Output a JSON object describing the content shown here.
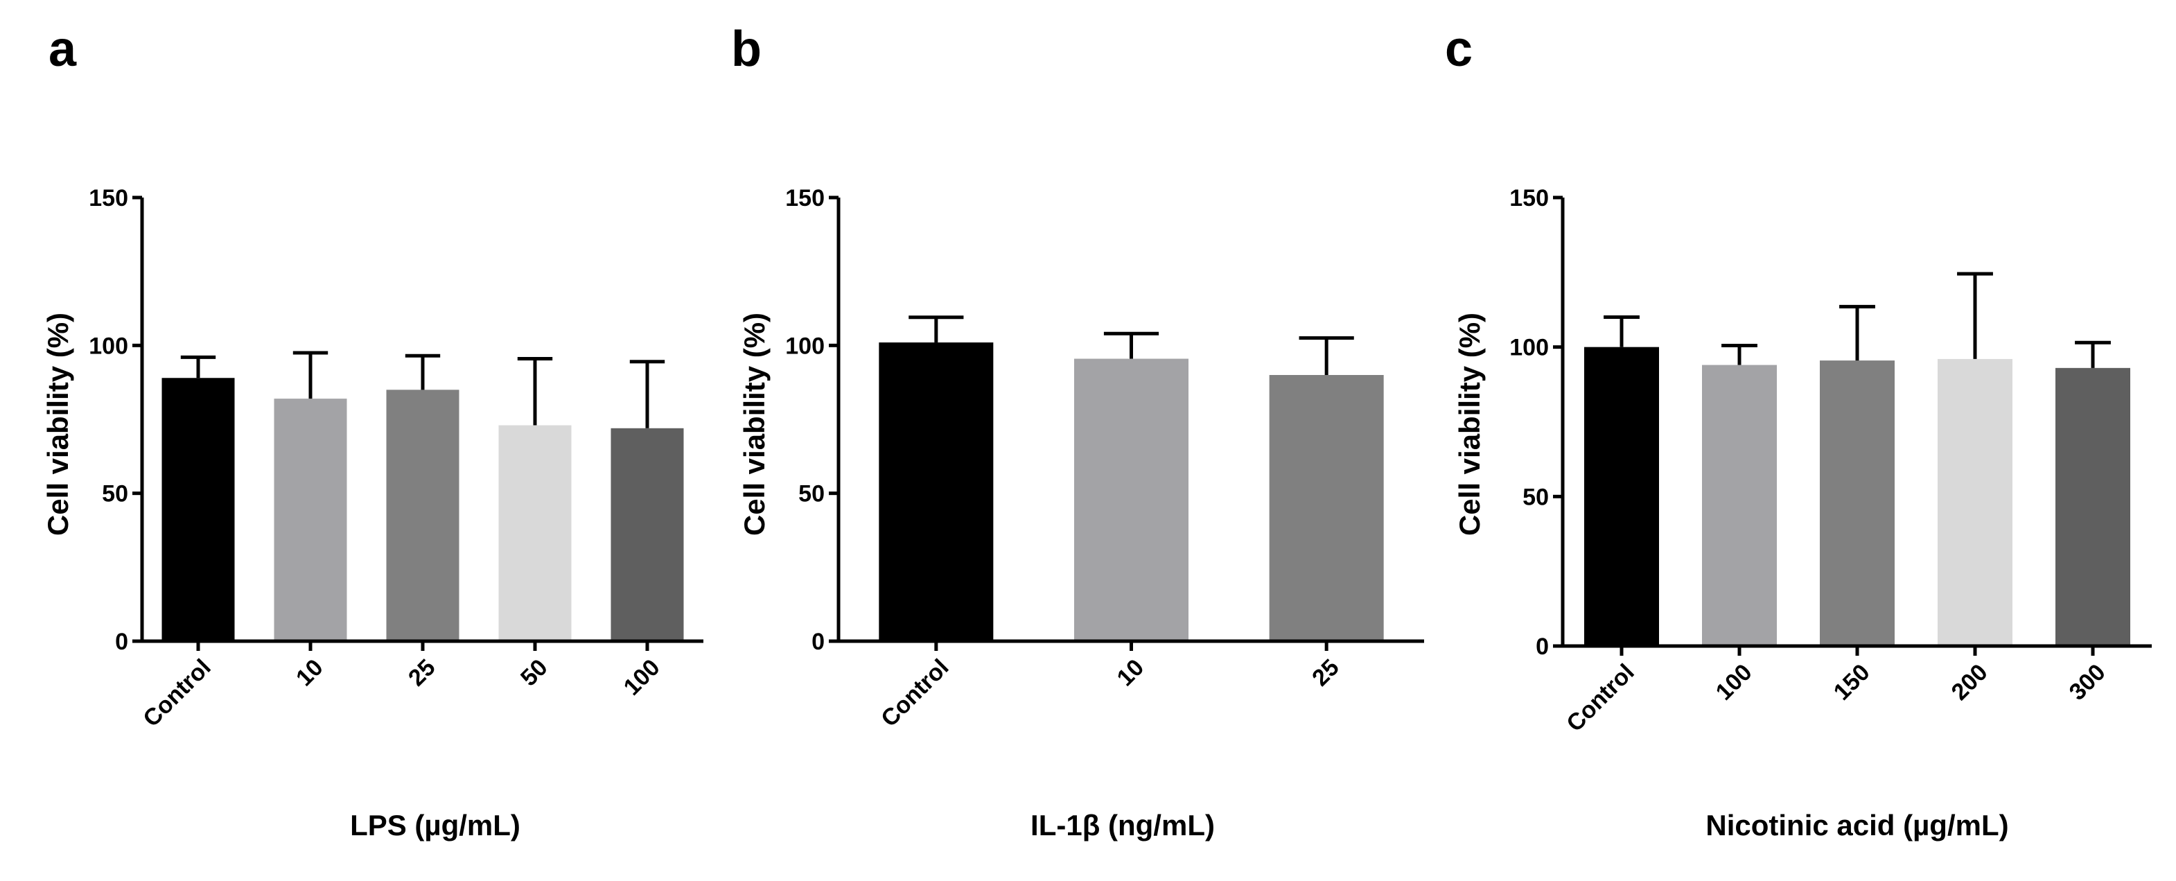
{
  "chart_data": [
    {
      "panel": "a",
      "type": "bar",
      "categories": [
        "Control",
        "10",
        "25",
        "50",
        "100"
      ],
      "values": [
        89,
        82,
        85,
        73,
        72
      ],
      "errors": [
        7,
        15.5,
        11.5,
        22.5,
        22.5
      ],
      "colors": [
        "#000000",
        "#a3a3a6",
        "#808080",
        "#d9d9d9",
        "#5f5f5f"
      ],
      "title": "",
      "xlabel": "LPS (µg/mL)",
      "ylabel": "Cell viability (%)",
      "ylim": [
        0,
        150
      ],
      "yticks": [
        0,
        50,
        100,
        150
      ]
    },
    {
      "panel": "b",
      "type": "bar",
      "categories": [
        "Control",
        "10",
        "25"
      ],
      "values": [
        101,
        95.5,
        90
      ],
      "errors": [
        8.5,
        8.5,
        12.5
      ],
      "colors": [
        "#000000",
        "#a3a3a6",
        "#808080"
      ],
      "title": "",
      "xlabel": "IL-1β (ng/mL)",
      "ylabel": "Cell viability (%)",
      "ylim": [
        0,
        150
      ],
      "yticks": [
        0,
        50,
        100,
        150
      ]
    },
    {
      "panel": "c",
      "type": "bar",
      "categories": [
        "Control",
        "100",
        "150",
        "200",
        "300"
      ],
      "values": [
        100,
        94,
        95.5,
        96,
        93
      ],
      "errors": [
        10,
        6.5,
        18,
        28.5,
        8.5
      ],
      "colors": [
        "#000000",
        "#a3a3a6",
        "#808080",
        "#d9d9d9",
        "#5f5f5f"
      ],
      "title": "",
      "xlabel": "Nicotinic acid (µg/mL)",
      "ylabel": "Cell viability (%)",
      "ylim": [
        0,
        150
      ],
      "yticks": [
        0,
        50,
        100,
        150
      ]
    }
  ]
}
